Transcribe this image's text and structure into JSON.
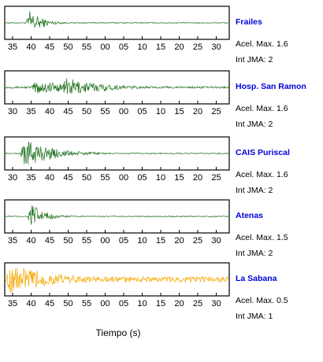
{
  "chart_data": {
    "type": "line",
    "xlabel": "Tiempo (s)",
    "panels": [
      {
        "station": "Frailes",
        "accel_label": "Acel. Max.",
        "accel_value": "1.6",
        "int_label": "Int JMA:",
        "int_value": "2",
        "color": "#1a6e1a",
        "tick_labels": [
          "35",
          "40",
          "45",
          "50",
          "55",
          "00",
          "05",
          "10",
          "15",
          "20",
          "25",
          "30"
        ],
        "onset_s": 38.5,
        "peak": 0.8,
        "duration_s": 10,
        "noise": 0.03
      },
      {
        "station": "Hosp. San Ramon",
        "accel_label": "Acel. Max.",
        "accel_value": "1.6",
        "int_label": "Int JMA:",
        "int_value": "2",
        "color": "#1a6e1a",
        "tick_labels": [
          "30",
          "35",
          "40",
          "45",
          "50",
          "55",
          "00",
          "05",
          "10",
          "15",
          "20",
          "25"
        ],
        "onset_s": 35,
        "peak": 0.5,
        "second_onset_s": 43,
        "second_peak": 0.6,
        "duration_s": 30,
        "noise": 0.06
      },
      {
        "station": "CAIS Puriscal",
        "accel_label": "Acel. Max.",
        "accel_value": "1.6",
        "int_label": "Int JMA:",
        "int_value": "2",
        "color": "#1a6e1a",
        "tick_labels": [
          "30",
          "35",
          "40",
          "45",
          "50",
          "55",
          "00",
          "05",
          "10",
          "15",
          "20",
          "25"
        ],
        "onset_s": 32,
        "peak": 0.95,
        "duration_s": 22,
        "noise": 0.03
      },
      {
        "station": "Atenas",
        "accel_label": "Acel. Max.",
        "accel_value": "1.5",
        "int_label": "Int JMA:",
        "int_value": "2",
        "color": "#1a6e1a",
        "tick_labels": [
          "35",
          "40",
          "45",
          "50",
          "55",
          "00",
          "05",
          "10",
          "15",
          "20",
          "25",
          "30"
        ],
        "onset_s": 39,
        "peak": 0.9,
        "duration_s": 10,
        "noise": 0.03
      },
      {
        "station": "La Sabana",
        "accel_label": "Acel. Max.",
        "accel_value": "0.5",
        "int_label": "Int JMA:",
        "int_value": "1",
        "color": "#f5a800",
        "tick_labels": [
          "35",
          "40",
          "45",
          "50",
          "55",
          "00",
          "05",
          "10",
          "15",
          "20",
          "25",
          "30"
        ],
        "onset_s": 33,
        "peak": 0.95,
        "duration_s": 40,
        "noise": 0.18
      }
    ]
  }
}
